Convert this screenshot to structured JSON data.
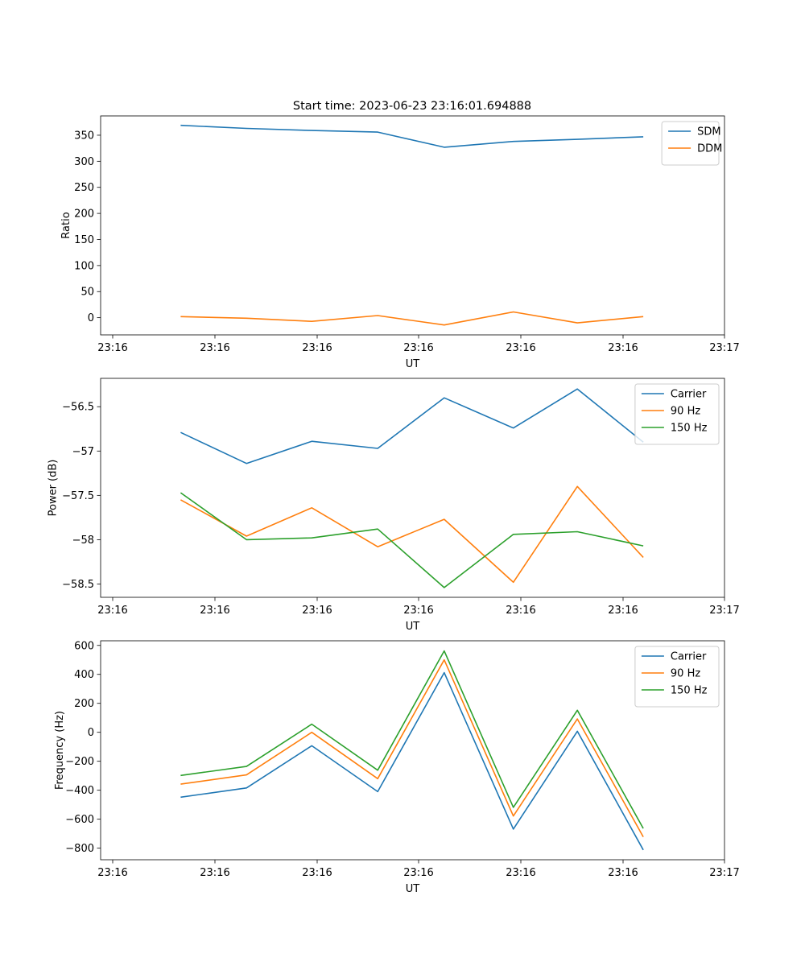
{
  "figure": {
    "title": "Start time: 2023-06-23 23:16:01.694888",
    "colors": {
      "blue": "#1f77b4",
      "orange": "#ff7f0e",
      "green": "#2ca02c"
    }
  },
  "chart_data": [
    {
      "type": "line",
      "xlabel": "UT",
      "ylabel": "Ratio",
      "x_tick_labels": [
        "23:16",
        "23:16",
        "23:16",
        "23:16",
        "23:16",
        "23:16",
        "23:17"
      ],
      "y_ticks": [
        0,
        50,
        100,
        150,
        200,
        250,
        300,
        350
      ],
      "ylim": [
        -33,
        387
      ],
      "xlim": [
        -0.5,
        9.25
      ],
      "x": [
        0.75,
        1.78,
        2.8,
        3.83,
        4.87,
        5.95,
        6.95,
        7.98
      ],
      "legend_position": "top-right",
      "grid": false,
      "series": [
        {
          "name": "SDM",
          "color": "#1f77b4",
          "values": [
            369,
            363,
            359,
            356,
            327,
            338,
            342,
            347
          ]
        },
        {
          "name": "DDM",
          "color": "#ff7f0e",
          "values": [
            2,
            -1,
            -7,
            4,
            -14,
            11,
            -10,
            2
          ]
        }
      ]
    },
    {
      "type": "line",
      "xlabel": "UT",
      "ylabel": "Power (dB)",
      "x_tick_labels": [
        "23:16",
        "23:16",
        "23:16",
        "23:16",
        "23:16",
        "23:16",
        "23:17"
      ],
      "y_ticks": [
        -56.5,
        -57.0,
        -57.5,
        -58.0,
        -58.5
      ],
      "ylim": [
        -58.65,
        -56.18
      ],
      "xlim": [
        -0.5,
        9.25
      ],
      "x": [
        0.75,
        1.78,
        2.8,
        3.83,
        4.87,
        5.95,
        6.95,
        7.98
      ],
      "legend_position": "top-right",
      "grid": false,
      "series": [
        {
          "name": "Carrier",
          "color": "#1f77b4",
          "values": [
            -56.79,
            -57.14,
            -56.89,
            -56.97,
            -56.4,
            -56.74,
            -56.3,
            -56.9
          ]
        },
        {
          "name": "90 Hz",
          "color": "#ff7f0e",
          "values": [
            -57.55,
            -57.96,
            -57.64,
            -58.08,
            -57.77,
            -58.48,
            -57.4,
            -58.2
          ]
        },
        {
          "name": "150 Hz",
          "color": "#2ca02c",
          "values": [
            -57.47,
            -58.0,
            -57.98,
            -57.88,
            -58.54,
            -57.94,
            -57.91,
            -58.07
          ]
        }
      ]
    },
    {
      "type": "line",
      "xlabel": "UT",
      "ylabel": "Frequency (Hz)",
      "x_tick_labels": [
        "23:16",
        "23:16",
        "23:16",
        "23:16",
        "23:16",
        "23:16",
        "23:17"
      ],
      "y_ticks": [
        600,
        400,
        200,
        0,
        -200,
        -400,
        -600,
        -800
      ],
      "ylim": [
        -880,
        632
      ],
      "xlim": [
        -0.5,
        9.25
      ],
      "x": [
        0.75,
        1.78,
        2.8,
        3.83,
        4.87,
        5.95,
        6.95,
        7.98
      ],
      "legend_position": "top-right",
      "grid": false,
      "series": [
        {
          "name": "Carrier",
          "color": "#1f77b4",
          "values": [
            -448,
            -384,
            -93,
            -410,
            412,
            -668,
            7,
            -812
          ]
        },
        {
          "name": "90 Hz",
          "color": "#ff7f0e",
          "values": [
            -358,
            -294,
            0,
            -320,
            500,
            -578,
            92,
            -722
          ]
        },
        {
          "name": "150 Hz",
          "color": "#2ca02c",
          "values": [
            -298,
            -236,
            56,
            -262,
            562,
            -518,
            152,
            -664
          ]
        }
      ]
    }
  ]
}
